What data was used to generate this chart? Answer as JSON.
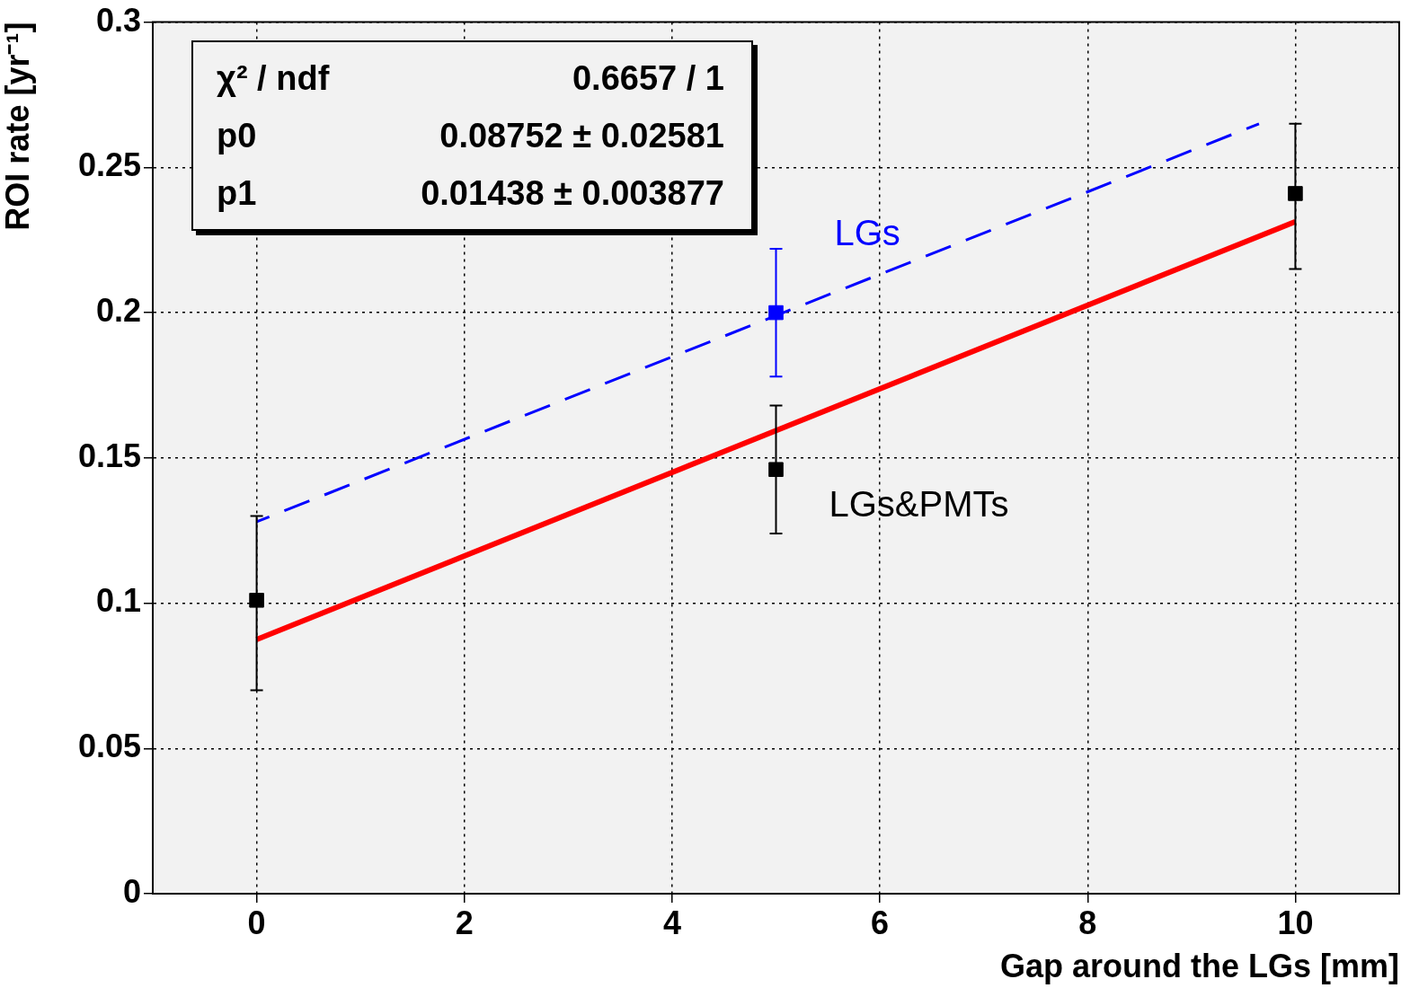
{
  "chart_data": {
    "type": "scatter",
    "xlabel": "Gap around the LGs [mm]",
    "ylabel": "ROI rate [yr⁻¹]",
    "xlim": [
      -1,
      11
    ],
    "ylim": [
      0,
      0.3
    ],
    "xticks": [
      0,
      2,
      4,
      6,
      8,
      10
    ],
    "yticks": [
      0,
      0.05,
      0.1,
      0.15,
      0.2,
      0.25,
      0.3
    ],
    "grid": true,
    "legend": false,
    "annotations": [
      "χ² / ndf",
      "0.6657 / 1",
      "p0",
      "0.08752 ± 0.02581",
      "p1",
      "0.01438 ± 0.003877"
    ],
    "series": [
      {
        "type": "scatter",
        "name": "LGs&PMTs",
        "color": "#000000",
        "x": [
          0,
          5,
          10
        ],
        "values": [
          0.101,
          0.146,
          0.241
        ],
        "errors": [
          [
            0.07,
            0.13
          ],
          [
            0.124,
            0.168
          ],
          [
            0.215,
            0.265
          ]
        ],
        "marker": "square"
      },
      {
        "type": "line",
        "color": "#ff0000",
        "x": [
          0,
          10
        ],
        "values": [
          0.0875,
          0.2313
        ]
      },
      {
        "type": "scatter",
        "name": "LGs",
        "color": "#0000ff",
        "x": [
          5
        ],
        "values": [
          0.2
        ],
        "errors": [
          [
            0.178,
            0.222
          ]
        ],
        "marker": "square"
      },
      {
        "type": "line",
        "color": "#0000ff",
        "x": [
          0,
          9.65
        ],
        "values": [
          0.128,
          0.265
        ],
        "line_style": "dashed"
      }
    ]
  }
}
